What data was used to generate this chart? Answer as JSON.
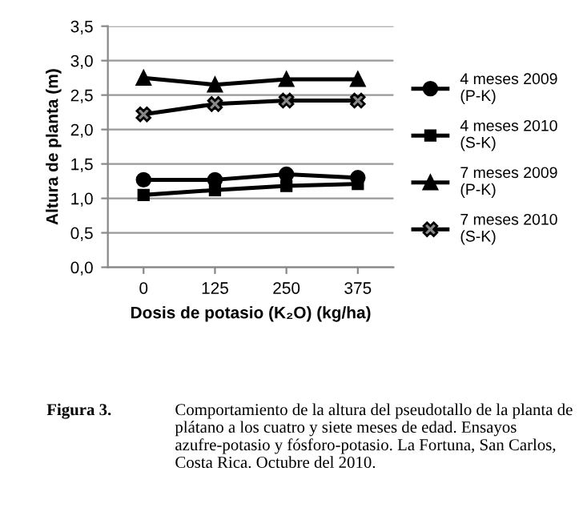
{
  "chart_data": {
    "type": "line",
    "xlabel": "Dosis de potasio (K₂O) (kg/ha)",
    "ylabel": "Altura de planta (m)",
    "categories": [
      "0",
      "125",
      "250",
      "375"
    ],
    "series": [
      {
        "name": "4 meses 2009\n(P-K)",
        "color": "#000000",
        "marker": "circle",
        "values": [
          1.27,
          1.27,
          1.35,
          1.3
        ]
      },
      {
        "name": "4 meses 2010\n(S-K)",
        "color": "#000000",
        "marker": "square",
        "values": [
          1.05,
          1.12,
          1.18,
          1.21
        ]
      },
      {
        "name": "7 meses 2009\n(P-K)",
        "color": "#000000",
        "marker": "triangle",
        "values": [
          2.75,
          2.65,
          2.73,
          2.73
        ]
      },
      {
        "name": "7 meses 2010\n(S-K)",
        "color": "#000000",
        "marker": "cross",
        "values": [
          2.22,
          2.37,
          2.42,
          2.42
        ]
      }
    ],
    "ylim": [
      0,
      3.5
    ],
    "yticks": [
      {
        "value": 0,
        "label": "0,0"
      },
      {
        "value": 0.5,
        "label": "0,5"
      },
      {
        "value": 1,
        "label": "1,0"
      },
      {
        "value": 1.5,
        "label": "1,5"
      },
      {
        "value": 2,
        "label": "2,0"
      },
      {
        "value": 2.5,
        "label": "2,5"
      },
      {
        "value": 3,
        "label": "3,0"
      },
      {
        "value": 3.5,
        "label": "3,5"
      }
    ],
    "grid": "y",
    "legend": "right",
    "line_style": "solid",
    "annotations": [
      "Figura 3.",
      "Comportamiento de la altura del pseudotallo de la planta de plátano a los cuatro y siete meses de edad. Ensayos azufre-potasio y fósforo-potasio. La Fortuna, San Carlos, Costa Rica. Octubre del 2010."
    ]
  }
}
